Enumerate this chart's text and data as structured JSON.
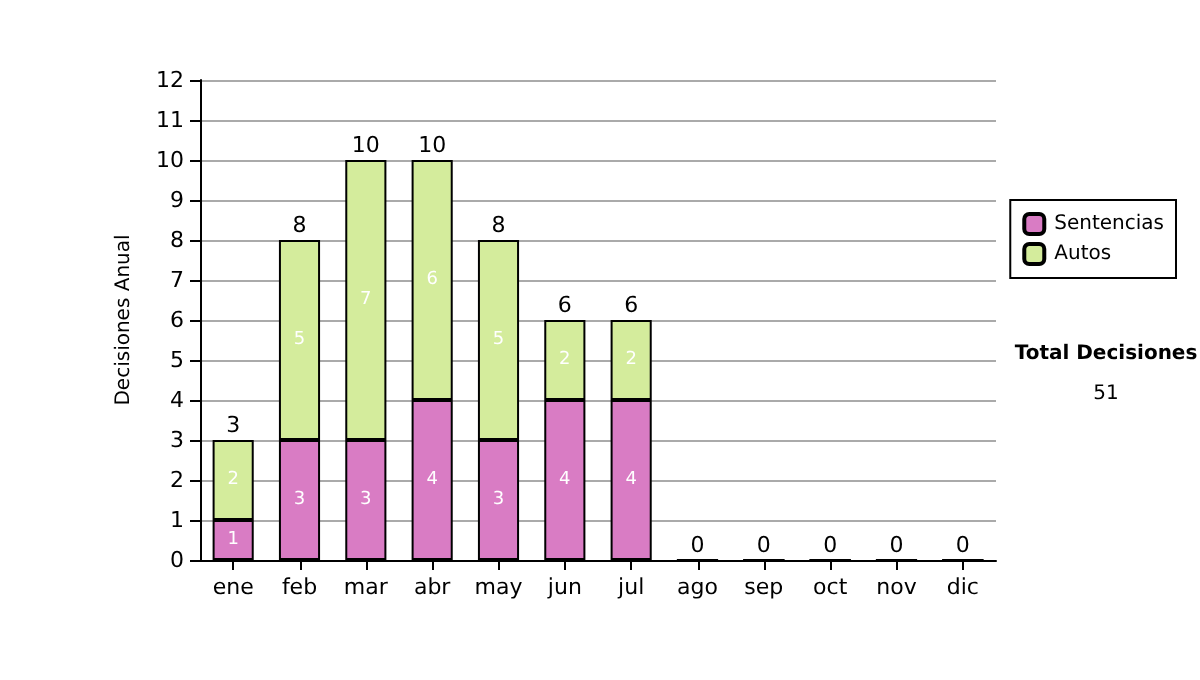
{
  "chart_data": {
    "type": "bar",
    "stacked": true,
    "ylabel": "Decisiones Anual",
    "categories": [
      "ene",
      "feb",
      "mar",
      "abr",
      "may",
      "jun",
      "jul",
      "ago",
      "sep",
      "oct",
      "nov",
      "dic"
    ],
    "series": [
      {
        "name": "Sentencias",
        "color": "#d97cc4",
        "values": [
          1,
          3,
          3,
          4,
          3,
          4,
          4,
          0,
          0,
          0,
          0,
          0
        ],
        "value_labels": [
          "1",
          "3",
          "3",
          "4",
          "3",
          "4",
          "4",
          null,
          null,
          null,
          null,
          null
        ]
      },
      {
        "name": "Autos",
        "color": "#d4ec9c",
        "values": [
          2,
          5,
          7,
          6,
          5,
          2,
          2,
          0,
          0,
          0,
          0,
          0
        ],
        "value_labels": [
          "2",
          "5",
          "7",
          "6",
          "5",
          "2",
          "2",
          null,
          null,
          null,
          null,
          null
        ]
      }
    ],
    "totals": [
      "3",
      "8",
      "10",
      "10",
      "8",
      "6",
      "6",
      "0",
      "0",
      "0",
      "0",
      "0"
    ],
    "ylim": [
      0,
      12
    ],
    "yticks": [
      0,
      1,
      2,
      3,
      4,
      5,
      6,
      7,
      8,
      9,
      10,
      11,
      12
    ],
    "grid": "y",
    "legend": "right",
    "annotations": [
      "Total Decisiones",
      "51"
    ]
  }
}
